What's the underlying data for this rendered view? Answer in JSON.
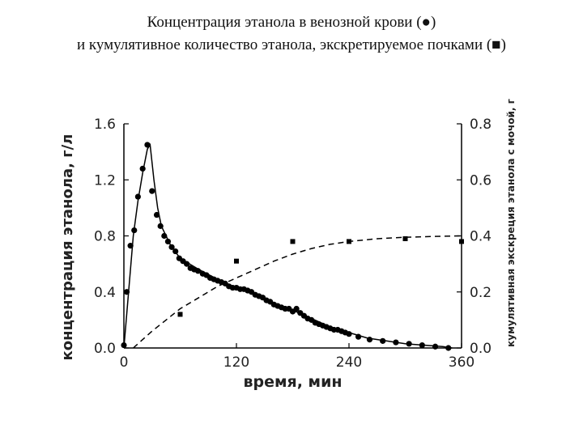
{
  "title": {
    "line1": "Концентрация этанола в венозной крови (●)",
    "line2": "и кумулятивное количество этанола, экскретируемое почками (■)"
  },
  "chart_data": {
    "type": "scatter",
    "xlabel": "время, мин",
    "ylabel_left": "концентрация этанола, г/л",
    "ylabel_right": "кумулятивная экскреция этанола с мочой, г",
    "xlim": [
      0,
      360
    ],
    "ylim_left": [
      0,
      1.6
    ],
    "ylim_right": [
      0,
      0.8
    ],
    "xticks": [
      0,
      120,
      240,
      360
    ],
    "xtick_labels": [
      "0",
      "120",
      "240",
      "360"
    ],
    "yticks_left": [
      0,
      0.4,
      0.8,
      1.2,
      1.6
    ],
    "ytick_labels_left": [
      "0.0",
      "0.4",
      "0.8",
      "1.2",
      "1.6"
    ],
    "yticks_right": [
      0,
      0.2,
      0.4,
      0.6,
      0.8
    ],
    "ytick_labels_right": [
      "0.0",
      "0.2",
      "0.4",
      "0.6",
      "0.8"
    ],
    "grid": false,
    "series": [
      {
        "marker": "circle",
        "axis": "left",
        "color": "#000000",
        "points": [
          [
            0,
            0.02
          ],
          [
            3,
            0.4
          ],
          [
            7,
            0.73
          ],
          [
            11,
            0.84
          ],
          [
            15,
            1.08
          ],
          [
            20,
            1.28
          ],
          [
            25,
            1.45
          ],
          [
            30,
            1.12
          ],
          [
            35,
            0.95
          ],
          [
            39,
            0.87
          ],
          [
            43,
            0.8
          ],
          [
            47,
            0.76
          ],
          [
            51,
            0.72
          ],
          [
            55,
            0.69
          ],
          [
            59,
            0.64
          ],
          [
            63,
            0.62
          ],
          [
            67,
            0.6
          ],
          [
            71,
            0.57
          ],
          [
            75,
            0.56
          ],
          [
            79,
            0.55
          ],
          [
            84,
            0.53
          ],
          [
            88,
            0.52
          ],
          [
            92,
            0.5
          ],
          [
            96,
            0.49
          ],
          [
            100,
            0.48
          ],
          [
            104,
            0.47
          ],
          [
            108,
            0.46
          ],
          [
            112,
            0.44
          ],
          [
            116,
            0.43
          ],
          [
            120,
            0.43
          ],
          [
            124,
            0.42
          ],
          [
            128,
            0.42
          ],
          [
            132,
            0.41
          ],
          [
            136,
            0.4
          ],
          [
            140,
            0.38
          ],
          [
            144,
            0.37
          ],
          [
            148,
            0.36
          ],
          [
            152,
            0.34
          ],
          [
            156,
            0.33
          ],
          [
            160,
            0.31
          ],
          [
            164,
            0.3
          ],
          [
            168,
            0.29
          ],
          [
            172,
            0.28
          ],
          [
            176,
            0.28
          ],
          [
            180,
            0.26
          ],
          [
            184,
            0.28
          ],
          [
            188,
            0.25
          ],
          [
            192,
            0.23
          ],
          [
            196,
            0.21
          ],
          [
            200,
            0.2
          ],
          [
            204,
            0.18
          ],
          [
            208,
            0.17
          ],
          [
            212,
            0.16
          ],
          [
            216,
            0.15
          ],
          [
            220,
            0.14
          ],
          [
            224,
            0.13
          ],
          [
            228,
            0.13
          ],
          [
            232,
            0.12
          ],
          [
            236,
            0.11
          ],
          [
            240,
            0.1
          ],
          [
            250,
            0.08
          ],
          [
            262,
            0.06
          ],
          [
            276,
            0.05
          ],
          [
            290,
            0.04
          ],
          [
            304,
            0.03
          ],
          [
            318,
            0.02
          ],
          [
            332,
            0.01
          ],
          [
            346,
            0.0
          ]
        ]
      },
      {
        "marker": "square",
        "axis": "right",
        "color": "#000000",
        "points": [
          [
            60,
            0.12
          ],
          [
            120,
            0.31
          ],
          [
            180,
            0.38
          ],
          [
            240,
            0.38
          ],
          [
            300,
            0.39
          ],
          [
            360,
            0.38
          ]
        ]
      }
    ],
    "fit_curves": [
      {
        "style": "solid",
        "axis": "left",
        "points": [
          [
            0,
            0
          ],
          [
            5,
            0.4
          ],
          [
            10,
            0.8
          ],
          [
            15,
            1.05
          ],
          [
            20,
            1.25
          ],
          [
            25,
            1.42
          ],
          [
            28,
            1.45
          ],
          [
            32,
            1.2
          ],
          [
            36,
            1.0
          ],
          [
            40,
            0.87
          ],
          [
            50,
            0.73
          ],
          [
            60,
            0.64
          ],
          [
            80,
            0.56
          ],
          [
            100,
            0.49
          ],
          [
            120,
            0.43
          ],
          [
            140,
            0.38
          ],
          [
            160,
            0.32
          ],
          [
            180,
            0.27
          ],
          [
            200,
            0.21
          ],
          [
            220,
            0.15
          ],
          [
            240,
            0.11
          ],
          [
            260,
            0.07
          ],
          [
            280,
            0.05
          ],
          [
            300,
            0.03
          ],
          [
            320,
            0.02
          ],
          [
            340,
            0.01
          ],
          [
            350,
            0.0
          ]
        ]
      },
      {
        "style": "dashed",
        "axis": "right",
        "points": [
          [
            10,
            0.0
          ],
          [
            20,
            0.03
          ],
          [
            30,
            0.06
          ],
          [
            45,
            0.1
          ],
          [
            60,
            0.14
          ],
          [
            80,
            0.18
          ],
          [
            100,
            0.22
          ],
          [
            120,
            0.25
          ],
          [
            140,
            0.28
          ],
          [
            160,
            0.31
          ],
          [
            180,
            0.335
          ],
          [
            200,
            0.355
          ],
          [
            220,
            0.37
          ],
          [
            240,
            0.38
          ],
          [
            270,
            0.39
          ],
          [
            300,
            0.395
          ],
          [
            330,
            0.398
          ],
          [
            360,
            0.4
          ]
        ]
      }
    ]
  }
}
